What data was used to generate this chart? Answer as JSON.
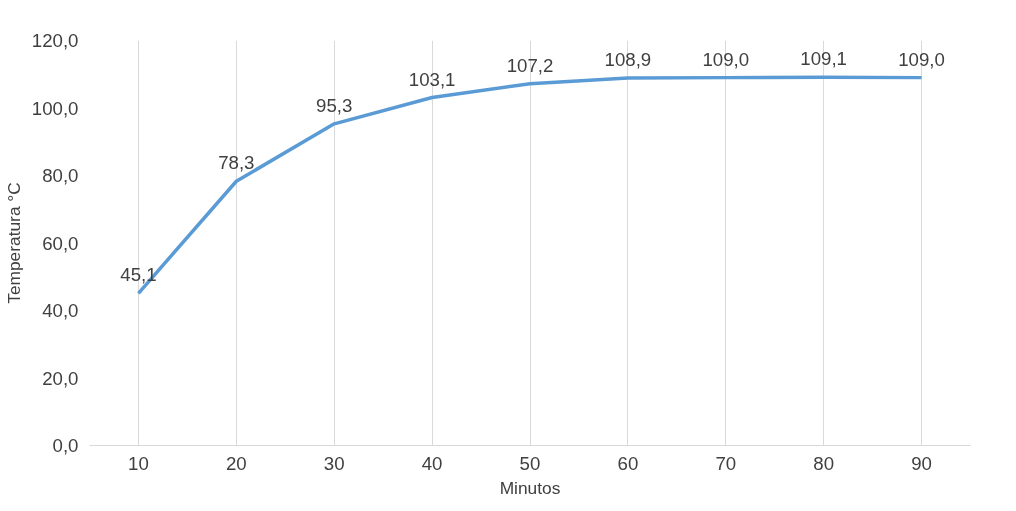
{
  "chart_data": {
    "type": "line",
    "xlabel": "Minutos",
    "ylabel": "Temperatura °C",
    "categories": [
      "10",
      "20",
      "30",
      "40",
      "50",
      "60",
      "70",
      "80",
      "90"
    ],
    "series": [
      {
        "color": "#5b9bd5",
        "values": [
          45.1,
          78.3,
          95.3,
          103.1,
          107.2,
          108.9,
          109.0,
          109.1,
          109.0
        ],
        "value_labels": [
          "45,1",
          "78,3",
          "95,3",
          "103,1",
          "107,2",
          "108,9",
          "109,0",
          "109,1",
          "109,0"
        ]
      }
    ],
    "ylim": [
      0,
      120
    ],
    "yticks": [
      {
        "value": 0,
        "label": "0,0"
      },
      {
        "value": 20,
        "label": "20,0"
      },
      {
        "value": 40,
        "label": "40,0"
      },
      {
        "value": 60,
        "label": "60,0"
      },
      {
        "value": 80,
        "label": "80,0"
      },
      {
        "value": 100,
        "label": "100,0"
      },
      {
        "value": 120,
        "label": "120,0"
      }
    ],
    "grid": "x",
    "marker": "none",
    "line_style": "solid"
  }
}
